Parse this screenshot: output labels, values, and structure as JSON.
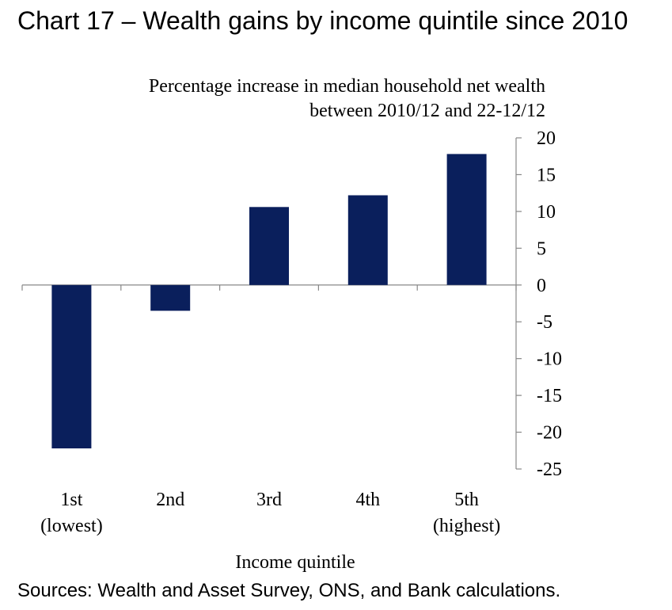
{
  "chart_title": "Chart 17 – Wealth gains by income quintile since 2010",
  "chart_data": {
    "type": "bar",
    "title": "Chart 17 – Wealth gains by income quintile since 2010",
    "subtitle_lines": [
      "Percentage increase in median household net wealth",
      "between 2010/12 and 22-12/12"
    ],
    "xlabel": "Income quintile",
    "ylabel": "",
    "categories": [
      [
        "1st",
        "(lowest)"
      ],
      [
        "2nd"
      ],
      [
        "3rd"
      ],
      [
        "4th"
      ],
      [
        "5th",
        "(highest)"
      ]
    ],
    "values": [
      -22.2,
      -3.5,
      10.6,
      12.2,
      17.8
    ],
    "ylim": [
      -25,
      20
    ],
    "yticks": [
      20,
      15,
      10,
      5,
      0,
      -5,
      -10,
      -15,
      -20,
      -25
    ],
    "y_axis_side": "right",
    "grid": false,
    "bar_color": "#0a1f5c"
  },
  "sources": "Sources: Wealth and Asset Survey, ONS, and Bank calculations."
}
